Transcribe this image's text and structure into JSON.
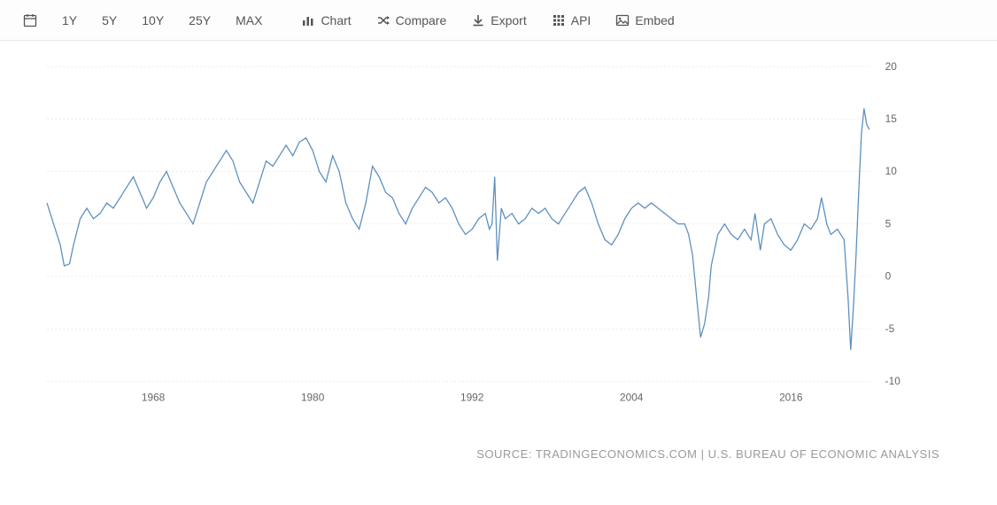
{
  "toolbar": {
    "calendar_icon": "calendar",
    "ranges": [
      "1Y",
      "5Y",
      "10Y",
      "25Y",
      "MAX"
    ],
    "actions": [
      {
        "icon": "chart-bar",
        "label": "Chart"
      },
      {
        "icon": "shuffle",
        "label": "Compare"
      },
      {
        "icon": "download",
        "label": "Export"
      },
      {
        "icon": "grid",
        "label": "API"
      },
      {
        "icon": "image",
        "label": "Embed"
      }
    ]
  },
  "chart": {
    "type": "line",
    "background_color": "#ffffff",
    "grid_color": "#e8e8e8",
    "axis_text_color": "#666666",
    "line_color": "#5b8fbf",
    "line_width": 1.4,
    "xlim": [
      1960,
      2022
    ],
    "ylim": [
      -10,
      20
    ],
    "yticks": [
      -10,
      -5,
      0,
      5,
      10,
      15,
      20
    ],
    "xticks": [
      1968,
      1980,
      1992,
      2004,
      2016
    ],
    "series": [
      [
        1960.0,
        7.0
      ],
      [
        1960.5,
        5.0
      ],
      [
        1961.0,
        3.0
      ],
      [
        1961.3,
        1.0
      ],
      [
        1961.7,
        1.2
      ],
      [
        1962.0,
        3.0
      ],
      [
        1962.5,
        5.5
      ],
      [
        1963.0,
        6.5
      ],
      [
        1963.5,
        5.5
      ],
      [
        1964.0,
        6.0
      ],
      [
        1964.5,
        7.0
      ],
      [
        1965.0,
        6.5
      ],
      [
        1965.5,
        7.5
      ],
      [
        1966.0,
        8.5
      ],
      [
        1966.5,
        9.5
      ],
      [
        1967.0,
        8.0
      ],
      [
        1967.5,
        6.5
      ],
      [
        1968.0,
        7.5
      ],
      [
        1968.5,
        9.0
      ],
      [
        1969.0,
        10.0
      ],
      [
        1969.5,
        8.5
      ],
      [
        1970.0,
        7.0
      ],
      [
        1970.5,
        6.0
      ],
      [
        1971.0,
        5.0
      ],
      [
        1971.5,
        7.0
      ],
      [
        1972.0,
        9.0
      ],
      [
        1972.5,
        10.0
      ],
      [
        1973.0,
        11.0
      ],
      [
        1973.5,
        12.0
      ],
      [
        1974.0,
        11.0
      ],
      [
        1974.5,
        9.0
      ],
      [
        1975.0,
        8.0
      ],
      [
        1975.5,
        7.0
      ],
      [
        1976.0,
        9.0
      ],
      [
        1976.5,
        11.0
      ],
      [
        1977.0,
        10.5
      ],
      [
        1977.5,
        11.5
      ],
      [
        1978.0,
        12.5
      ],
      [
        1978.5,
        11.5
      ],
      [
        1979.0,
        12.8
      ],
      [
        1979.5,
        13.2
      ],
      [
        1980.0,
        12.0
      ],
      [
        1980.5,
        10.0
      ],
      [
        1981.0,
        9.0
      ],
      [
        1981.5,
        11.5
      ],
      [
        1982.0,
        10.0
      ],
      [
        1982.5,
        7.0
      ],
      [
        1983.0,
        5.5
      ],
      [
        1983.5,
        4.5
      ],
      [
        1984.0,
        7.0
      ],
      [
        1984.5,
        10.5
      ],
      [
        1985.0,
        9.5
      ],
      [
        1985.5,
        8.0
      ],
      [
        1986.0,
        7.5
      ],
      [
        1986.5,
        6.0
      ],
      [
        1987.0,
        5.0
      ],
      [
        1987.5,
        6.5
      ],
      [
        1988.0,
        7.5
      ],
      [
        1988.5,
        8.5
      ],
      [
        1989.0,
        8.0
      ],
      [
        1989.5,
        7.0
      ],
      [
        1990.0,
        7.5
      ],
      [
        1990.5,
        6.5
      ],
      [
        1991.0,
        5.0
      ],
      [
        1991.5,
        4.0
      ],
      [
        1992.0,
        4.5
      ],
      [
        1992.5,
        5.5
      ],
      [
        1993.0,
        6.0
      ],
      [
        1993.3,
        4.5
      ],
      [
        1993.5,
        5.0
      ],
      [
        1993.7,
        9.5
      ],
      [
        1993.9,
        1.5
      ],
      [
        1994.2,
        6.5
      ],
      [
        1994.5,
        5.5
      ],
      [
        1995.0,
        6.0
      ],
      [
        1995.5,
        5.0
      ],
      [
        1996.0,
        5.5
      ],
      [
        1996.5,
        6.5
      ],
      [
        1997.0,
        6.0
      ],
      [
        1997.5,
        6.5
      ],
      [
        1998.0,
        5.5
      ],
      [
        1998.5,
        5.0
      ],
      [
        1999.0,
        6.0
      ],
      [
        1999.5,
        7.0
      ],
      [
        2000.0,
        8.0
      ],
      [
        2000.5,
        8.5
      ],
      [
        2001.0,
        7.0
      ],
      [
        2001.5,
        5.0
      ],
      [
        2002.0,
        3.5
      ],
      [
        2002.5,
        3.0
      ],
      [
        2003.0,
        4.0
      ],
      [
        2003.5,
        5.5
      ],
      [
        2004.0,
        6.5
      ],
      [
        2004.5,
        7.0
      ],
      [
        2005.0,
        6.5
      ],
      [
        2005.5,
        7.0
      ],
      [
        2006.0,
        6.5
      ],
      [
        2006.5,
        6.0
      ],
      [
        2007.0,
        5.5
      ],
      [
        2007.5,
        5.0
      ],
      [
        2008.0,
        5.0
      ],
      [
        2008.3,
        4.0
      ],
      [
        2008.6,
        2.0
      ],
      [
        2008.9,
        -2.0
      ],
      [
        2009.2,
        -5.8
      ],
      [
        2009.5,
        -4.5
      ],
      [
        2009.8,
        -2.0
      ],
      [
        2010.0,
        1.0
      ],
      [
        2010.5,
        4.0
      ],
      [
        2011.0,
        5.0
      ],
      [
        2011.5,
        4.0
      ],
      [
        2012.0,
        3.5
      ],
      [
        2012.5,
        4.5
      ],
      [
        2013.0,
        3.5
      ],
      [
        2013.3,
        6.0
      ],
      [
        2013.7,
        2.5
      ],
      [
        2014.0,
        5.0
      ],
      [
        2014.5,
        5.5
      ],
      [
        2015.0,
        4.0
      ],
      [
        2015.5,
        3.0
      ],
      [
        2016.0,
        2.5
      ],
      [
        2016.5,
        3.5
      ],
      [
        2017.0,
        5.0
      ],
      [
        2017.5,
        4.5
      ],
      [
        2018.0,
        5.5
      ],
      [
        2018.3,
        7.5
      ],
      [
        2018.7,
        5.0
      ],
      [
        2019.0,
        4.0
      ],
      [
        2019.5,
        4.5
      ],
      [
        2020.0,
        3.5
      ],
      [
        2020.3,
        -2.0
      ],
      [
        2020.5,
        -7.0
      ],
      [
        2020.7,
        -3.0
      ],
      [
        2020.9,
        2.0
      ],
      [
        2021.1,
        8.0
      ],
      [
        2021.3,
        13.5
      ],
      [
        2021.5,
        16.0
      ],
      [
        2021.7,
        14.5
      ],
      [
        2021.9,
        14.0
      ]
    ]
  },
  "source": {
    "prefix": "SOURCE:",
    "site": "TRADINGECONOMICS.COM",
    "sep": "|",
    "org": "U.S. BUREAU OF ECONOMIC ANALYSIS"
  }
}
